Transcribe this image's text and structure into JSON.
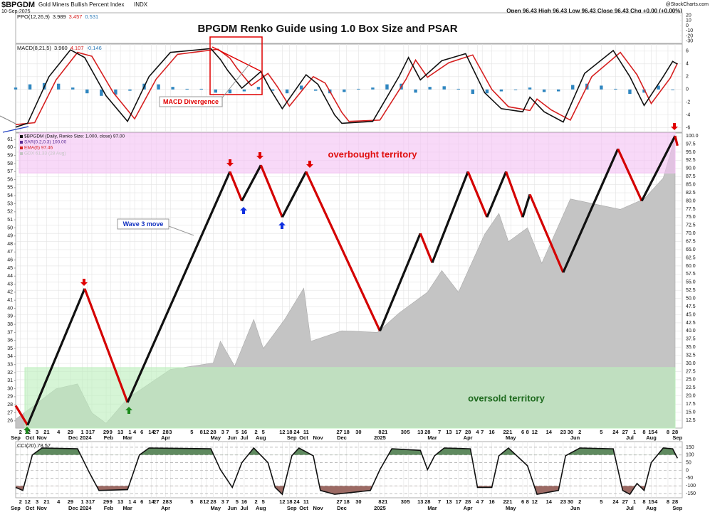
{
  "header": {
    "symbol": "$BPGDM",
    "name": "Gold Miners Bullish Percent Index",
    "exchange": "INDX",
    "date": "10-Sep-2025",
    "quote": "Open 96.43  High 96.43  Low 96.43  Close 96.43  Chg +0.00 (+0.00%)",
    "brand": "@StockCharts.com"
  },
  "annotations": {
    "title": "BPGDM Renko Guide using 1.0 Box Size and PSAR",
    "wave": "Wave 3 move",
    "divergence": "MACD Divergence"
  },
  "chart_data": [
    {
      "type": "line",
      "label": "PPO(12,26,9)",
      "readout": [
        {
          "text": "3.989",
          "color": "#111"
        },
        {
          "text": "3.457",
          "color": "#d62020"
        },
        {
          "text": "0.531",
          "color": "#2a7ab8"
        }
      ],
      "ylim": [
        -34.7,
        25
      ],
      "yticks": [
        20,
        10,
        0,
        -10,
        -20,
        -30
      ],
      "series": []
    },
    {
      "type": "line",
      "label": "MACD(8,21,5)",
      "readout": [
        {
          "text": "3.960",
          "color": "#111"
        },
        {
          "text": "4.107",
          "color": "#d62020"
        },
        {
          "text": "-0.146",
          "color": "#2a7ab8"
        }
      ],
      "xlim": [
        0,
        280
      ],
      "ylim": [
        -6.7,
        7.1
      ],
      "yticks": [
        6,
        4,
        2,
        0,
        -2,
        -4,
        -6
      ],
      "grid": true,
      "series": [
        {
          "type": "bar",
          "color": "#2f86c0",
          "x": [
            0,
            6,
            12,
            18,
            24,
            30,
            36,
            42,
            48,
            54,
            60,
            66,
            72,
            78,
            84,
            90,
            96,
            102,
            108,
            114,
            120,
            126,
            132,
            138,
            144,
            150,
            156,
            162,
            168,
            174,
            180,
            186,
            192,
            198,
            204,
            210,
            216,
            222,
            228,
            234,
            240,
            246,
            252,
            258,
            264,
            270,
            276
          ],
          "values": [
            0.3,
            0.8,
            1.0,
            0.9,
            0.3,
            -0.6,
            -1.0,
            -0.8,
            -0.2,
            0.9,
            0.8,
            0.4,
            0.1,
            0.1,
            -0.5,
            -0.6,
            -0.3,
            0.4,
            -0.2,
            -0.6,
            0.6,
            -0.2,
            -0.6,
            -0.4,
            0.1,
            0.3,
            0.8,
            0.9,
            -0.5,
            0.4,
            0.5,
            0.1,
            -0.7,
            -0.6,
            -0.3,
            -0.1,
            0.3,
            -0.4,
            -0.3,
            0.7,
            0.9,
            0.6,
            0.1,
            -0.7,
            -0.5,
            0.6,
            -0.1
          ]
        },
        {
          "type": "line",
          "color": "#d62020",
          "x": [
            0,
            8,
            17,
            26,
            32,
            41,
            50,
            59,
            68,
            85,
            90,
            93,
            99,
            106,
            110,
            115,
            125,
            130,
            137,
            140,
            153,
            164,
            168,
            173,
            182,
            192,
            200,
            207,
            216,
            219,
            225,
            233,
            242,
            254,
            261,
            267,
            275,
            278
          ],
          "values": [
            -5.5,
            -5.2,
            1.5,
            5.8,
            5.2,
            -0.5,
            -4.6,
            1.6,
            5.5,
            6.3,
            4.9,
            3.3,
            0.6,
            2.5,
            0.4,
            -2.6,
            2,
            1,
            -3.6,
            -5,
            -4.8,
            1.6,
            4.6,
            1.9,
            4.2,
            5.4,
            0,
            -2.7,
            -3.3,
            -1.5,
            -3.2,
            -4.8,
            2,
            5.8,
            2.3,
            -2.2,
            1.8,
            4.11
          ]
        },
        {
          "type": "line",
          "color": "#111111",
          "x": [
            0,
            5,
            14,
            23,
            29,
            38,
            47,
            56,
            65,
            82,
            86,
            89,
            95,
            103,
            107,
            112,
            122,
            127,
            134,
            137,
            150,
            161,
            165,
            170,
            179,
            189,
            197,
            204,
            213,
            216,
            222,
            230,
            239,
            251,
            258,
            264,
            272,
            276,
            278
          ],
          "values": [
            -5.9,
            -5.3,
            2,
            6.2,
            5,
            -1,
            -5,
            2,
            5.8,
            6.4,
            4.7,
            3,
            0.2,
            2.8,
            0,
            -3,
            2.3,
            0.8,
            -4,
            -5.3,
            -5,
            2,
            5,
            1.5,
            4.5,
            5.6,
            -0.5,
            -3,
            -3.5,
            -1.2,
            -3.5,
            -5.1,
            2.5,
            6.1,
            2,
            -2.5,
            2,
            4.4,
            3.96
          ]
        }
      ]
    },
    {
      "type": "renko",
      "xlim": [
        0,
        280
      ],
      "ylim": [
        10.1,
        100.9
      ],
      "y2lim": [
        25.1,
        61.8
      ],
      "grid": true,
      "yticks": [
        {
          "value": 100,
          "label": "100.0"
        },
        97.5,
        {
          "value": 95,
          "label": "95.0"
        },
        92.5,
        {
          "value": 90,
          "label": "90.0"
        },
        87.5,
        {
          "value": 85,
          "label": "85.0"
        },
        82.5,
        {
          "value": 80,
          "label": "80.0"
        },
        77.5,
        {
          "value": 75,
          "label": "75.0"
        },
        72.5,
        {
          "value": 70,
          "label": "70.0"
        },
        67.5,
        {
          "value": 65,
          "label": "65.0"
        },
        62.5,
        {
          "value": 60,
          "label": "60.0"
        },
        57.5,
        {
          "value": 55,
          "label": "55.0"
        },
        52.5,
        {
          "value": 50,
          "label": "50.0"
        },
        47.5,
        {
          "value": 45,
          "label": "45.0"
        },
        42.5,
        {
          "value": 40,
          "label": "40.0"
        },
        37.5,
        {
          "value": 35,
          "label": "35.0"
        },
        32.5,
        {
          "value": 30,
          "label": "30.0"
        },
        27.5,
        {
          "value": 25,
          "label": "25.0"
        },
        22.5,
        {
          "value": 20,
          "label": "20.0"
        },
        17.5,
        {
          "value": 15,
          "label": "15.0"
        },
        12.5
      ],
      "y2ticks": [
        61,
        60,
        59,
        58,
        57,
        56,
        55,
        54,
        53,
        52,
        51,
        50,
        49,
        48,
        47,
        46,
        45,
        44,
        43,
        42,
        41,
        40,
        39,
        38,
        37,
        36,
        35,
        34,
        33,
        32,
        31,
        30,
        29,
        28,
        27,
        26
      ],
      "xticks": [
        {
          "value": 2,
          "label": "2"
        },
        {
          "value": 5,
          "label": "12"
        },
        {
          "value": 9,
          "label": "3"
        },
        {
          "value": 13,
          "label": "21"
        },
        {
          "value": 18,
          "label": "4"
        },
        {
          "value": 23,
          "label": "29"
        },
        {
          "value": 28,
          "label": "1"
        },
        {
          "value": 30,
          "label": "3"
        },
        {
          "value": 32,
          "label": "17"
        },
        {
          "value": 38,
          "label": "29"
        },
        {
          "value": 40,
          "label": "9"
        },
        {
          "value": 44,
          "label": "13"
        },
        {
          "value": 48,
          "label": "1"
        },
        {
          "value": 50,
          "label": "4"
        },
        {
          "value": 53,
          "label": "6"
        },
        {
          "value": 57,
          "label": "14"
        },
        {
          "value": 59,
          "label": "27"
        },
        {
          "value": 63,
          "label": "28"
        },
        {
          "value": 65,
          "label": "3"
        },
        {
          "value": 74,
          "label": "5"
        },
        {
          "value": 78,
          "label": "8"
        },
        {
          "value": 80,
          "label": "12"
        },
        {
          "value": 83,
          "label": "28"
        },
        {
          "value": 87,
          "label": "3"
        },
        {
          "value": 89,
          "label": "7"
        },
        {
          "value": 93,
          "label": "5"
        },
        {
          "value": 96,
          "label": "16"
        },
        {
          "value": 101,
          "label": "2"
        },
        {
          "value": 104,
          "label": "5"
        },
        {
          "value": 112,
          "label": "12"
        },
        {
          "value": 115,
          "label": "18"
        },
        {
          "value": 118,
          "label": "24"
        },
        {
          "value": 122,
          "label": "11"
        },
        {
          "value": 136,
          "label": "27"
        },
        {
          "value": 139,
          "label": "18"
        },
        {
          "value": 144,
          "label": "30"
        },
        {
          "value": 153,
          "label": "8"
        },
        {
          "value": 155,
          "label": "21"
        },
        {
          "value": 163,
          "label": "30"
        },
        {
          "value": 165,
          "label": "5"
        },
        {
          "value": 170,
          "label": "13"
        },
        {
          "value": 173,
          "label": "28"
        },
        {
          "value": 178,
          "label": "7"
        },
        {
          "value": 182,
          "label": "13"
        },
        {
          "value": 186,
          "label": "17"
        },
        {
          "value": 190,
          "label": "28"
        },
        {
          "value": 194,
          "label": "4"
        },
        {
          "value": 196,
          "label": "7"
        },
        {
          "value": 200,
          "label": "16"
        },
        {
          "value": 206,
          "label": "22"
        },
        {
          "value": 208,
          "label": "1"
        },
        {
          "value": 213,
          "label": "6"
        },
        {
          "value": 215,
          "label": "8"
        },
        {
          "value": 218,
          "label": "12"
        },
        {
          "value": 224,
          "label": "14"
        },
        {
          "value": 230,
          "label": "23"
        },
        {
          "value": 233,
          "label": "30"
        },
        {
          "value": 237,
          "label": "2"
        },
        {
          "value": 246,
          "label": "5"
        },
        {
          "value": 252,
          "label": "24"
        },
        {
          "value": 256,
          "label": "27"
        },
        {
          "value": 260,
          "label": "1"
        },
        {
          "value": 264,
          "label": "8"
        },
        {
          "value": 267,
          "label": "15"
        },
        {
          "value": 269,
          "label": "4"
        },
        {
          "value": 274,
          "label": "8"
        },
        {
          "value": 277,
          "label": "28"
        }
      ],
      "x_month_ticks": [
        {
          "value": 0,
          "label": "Sep"
        },
        {
          "value": 6,
          "label": "Oct"
        },
        {
          "value": 11,
          "label": "Nov"
        },
        {
          "value": 27,
          "label": "Dec 2024"
        },
        {
          "value": 39,
          "label": "Feb"
        },
        {
          "value": 47,
          "label": "Mar"
        },
        {
          "value": 63,
          "label": "Apr"
        },
        {
          "value": 84,
          "label": "May"
        },
        {
          "value": 91,
          "label": "Jun"
        },
        {
          "value": 96,
          "label": "Jul"
        },
        {
          "value": 103,
          "label": "Aug"
        },
        {
          "value": 116,
          "label": "Sep"
        },
        {
          "value": 121,
          "label": "Oct"
        },
        {
          "value": 127,
          "label": "Nov"
        },
        {
          "value": 137,
          "label": "Dec"
        },
        {
          "value": 153,
          "label": "2025"
        },
        {
          "value": 175,
          "label": "Mar"
        },
        {
          "value": 190,
          "label": "Apr"
        },
        {
          "value": 208,
          "label": "May"
        },
        {
          "value": 235,
          "label": "Jun"
        },
        {
          "value": 258,
          "label": "Jul"
        },
        {
          "value": 267,
          "label": "Aug"
        },
        {
          "value": 278,
          "label": "Sep"
        }
      ],
      "bands": [
        {
          "label": "overbought territory",
          "range": [
            88.6,
            100.9
          ],
          "color": "#f3c2f3",
          "text_color": "#e01010"
        },
        {
          "label": "oversold territory",
          "range": [
            10.1,
            28.7
          ],
          "color": "#bdefbd",
          "text_color": "#1f6b1f"
        }
      ],
      "series": [
        {
          "name": "GDX 61.33 (28 Aug)",
          "type": "area",
          "axis": "y2",
          "color": "#c4c4c4",
          "x": [
            0,
            17,
            26,
            32,
            38,
            47,
            65,
            83,
            86,
            92,
            100,
            104,
            113,
            121,
            124,
            137,
            152,
            161,
            173,
            179,
            186,
            197,
            203,
            207,
            215,
            221,
            233,
            254,
            264,
            272,
            277
          ],
          "values": [
            26.2,
            30,
            30.6,
            27,
            25.7,
            28.8,
            32.4,
            33.2,
            35.9,
            32.8,
            38.6,
            35,
            38.6,
            42.5,
            35.9,
            37.2,
            37,
            39.4,
            42,
            44.7,
            42,
            49.2,
            51.8,
            48.3,
            50,
            45.6,
            53.6,
            52.3,
            53.6,
            56.2,
            61.3
          ]
        },
        {
          "name": "$BPGDM (Daily, Renko Size: 1.000, close) 97.00",
          "type": "renko",
          "color": "#111111",
          "down_color": "#d40000",
          "x": [
            0,
            5,
            29,
            47,
            90,
            95,
            103,
            112,
            122,
            153,
            170,
            175,
            190,
            198,
            206,
            213,
            216,
            230,
            253,
            263,
            277,
            278
          ],
          "values": [
            17,
            11,
            53,
            18,
            89,
            80,
            91,
            75,
            89,
            40,
            70,
            61,
            89,
            75,
            89,
            75,
            82,
            58,
            96,
            80,
            100,
            97
          ]
        }
      ],
      "indicators": [
        {
          "name": "SAR(0.2,0.3) 100.00",
          "color": "#5b2d95"
        },
        {
          "name": "EMA(6) 97.46",
          "color": "#d62020"
        }
      ]
    },
    {
      "type": "line",
      "label": "CCI(20) 78.57",
      "xlim": [
        0,
        280
      ],
      "ylim": [
        -177.4,
        186.6
      ],
      "yticks": [
        150,
        100,
        50,
        0,
        -50,
        -100,
        -150
      ],
      "grid": true,
      "series": [
        {
          "type": "line",
          "color": "#111111",
          "fill_above": 100,
          "above_color": "#5f8a5f",
          "fill_below": -100,
          "below_color": "#9c6a64",
          "x": [
            0,
            3,
            7,
            11,
            26,
            31,
            35,
            47,
            52,
            56,
            82,
            86,
            91,
            95,
            100,
            106,
            109,
            112,
            116,
            119,
            125,
            128,
            134,
            149,
            153,
            158,
            170,
            173,
            176,
            180,
            191,
            194,
            200,
            203,
            207,
            215,
            219,
            228,
            231,
            237,
            251,
            255,
            258,
            261,
            264,
            267,
            272,
            276,
            278
          ],
          "values": [
            -110,
            -130,
            100,
            145,
            140,
            -15,
            -130,
            -125,
            100,
            145,
            140,
            5,
            -110,
            50,
            145,
            50,
            -110,
            -155,
            95,
            145,
            95,
            -130,
            -155,
            -130,
            5,
            140,
            130,
            5,
            95,
            145,
            140,
            -110,
            -110,
            95,
            145,
            30,
            -155,
            -130,
            95,
            145,
            140,
            -130,
            -155,
            -85,
            -130,
            50,
            145,
            140,
            78.57
          ]
        }
      ]
    }
  ]
}
